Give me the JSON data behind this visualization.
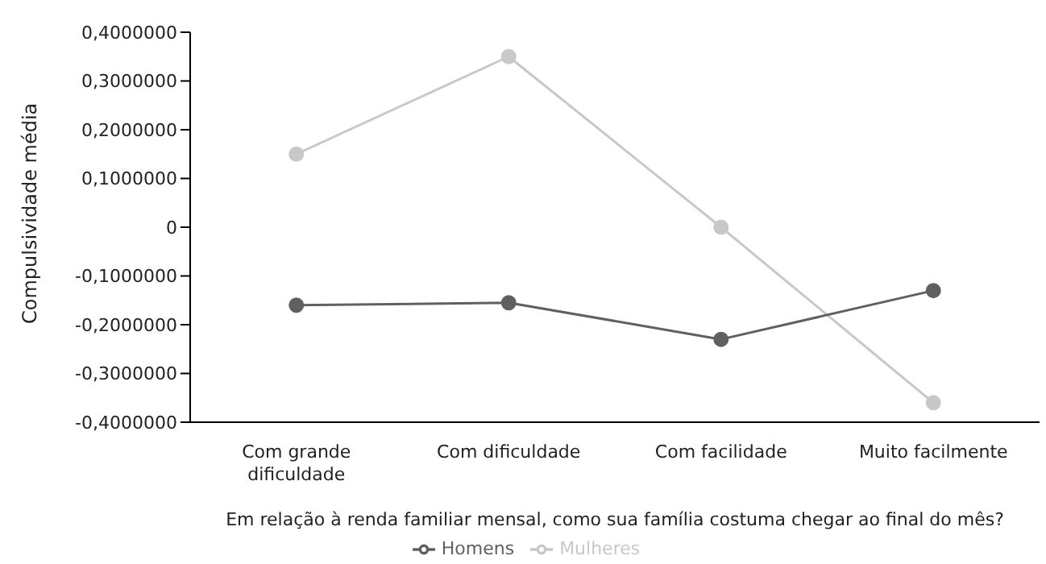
{
  "chart_data": {
    "type": "line",
    "ylabel": "Compulsividade média",
    "xlabel": "Em relação à renda familiar mensal, como sua família costuma chegar ao final do mês?",
    "categories": [
      "Com grande dificuldade",
      "Com dificuldade",
      "Com facilidade",
      "Muito facilmente"
    ],
    "series": [
      {
        "name": "Mulheres",
        "color": "#c8c8c8",
        "values": [
          0.15,
          0.35,
          0.0,
          -0.36
        ]
      },
      {
        "name": "Homens",
        "color": "#606060",
        "values": [
          -0.16,
          -0.155,
          -0.23,
          -0.13
        ]
      }
    ],
    "ylim": [
      -0.4,
      0.4
    ],
    "yticks": [
      {
        "value": -0.4,
        "label": "-0,4000000"
      },
      {
        "value": -0.3,
        "label": "-0,3000000"
      },
      {
        "value": -0.2,
        "label": "-0,2000000"
      },
      {
        "value": -0.1,
        "label": "-0,1000000"
      },
      0,
      {
        "value": 0.1,
        "label": "0,1000000"
      },
      {
        "value": 0.2,
        "label": "0,2000000"
      },
      {
        "value": 0.3,
        "label": "0,3000000"
      },
      {
        "value": 0.4,
        "label": "0,4000000"
      }
    ],
    "grid": false,
    "legend": "bottom",
    "marker": "circle",
    "line_style": "solid"
  }
}
